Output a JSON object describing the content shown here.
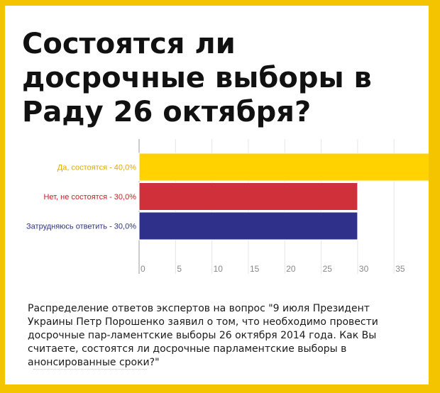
{
  "title": "Состоятся ли досрочные выборы в Раду 26 октября?",
  "caption": "Распределение ответов экспертов на вопрос \"9 июля Президент Украины Петр Порошенко заявил о том, что необходимо провести досрочные пар-ламентские выборы 26 октября 2014 года. Как Вы считаете, состоятся ли досрочные парламентские выборы в анонсированные сроки?\"",
  "colors": {
    "background": "#f5c400",
    "bar_yes": "#ffd200",
    "bar_no": "#d0303a",
    "bar_unsure": "#2e3089",
    "label_yes": "#e0a800",
    "label_no": "#cc2020",
    "label_unsure": "#2e3089"
  },
  "chart_data": {
    "type": "bar",
    "orientation": "horizontal",
    "title": "",
    "categories": [
      "Да, состоятся - 40,0%",
      "Нет, не состоятся - 30,0%",
      "Затрудняюсь ответить - 30,0%"
    ],
    "values": [
      40,
      30,
      30
    ],
    "xlim": [
      0,
      38
    ],
    "xticks": [
      0,
      5,
      10,
      15,
      20,
      25,
      30,
      35
    ],
    "grid": "vertical",
    "legend": "none"
  }
}
